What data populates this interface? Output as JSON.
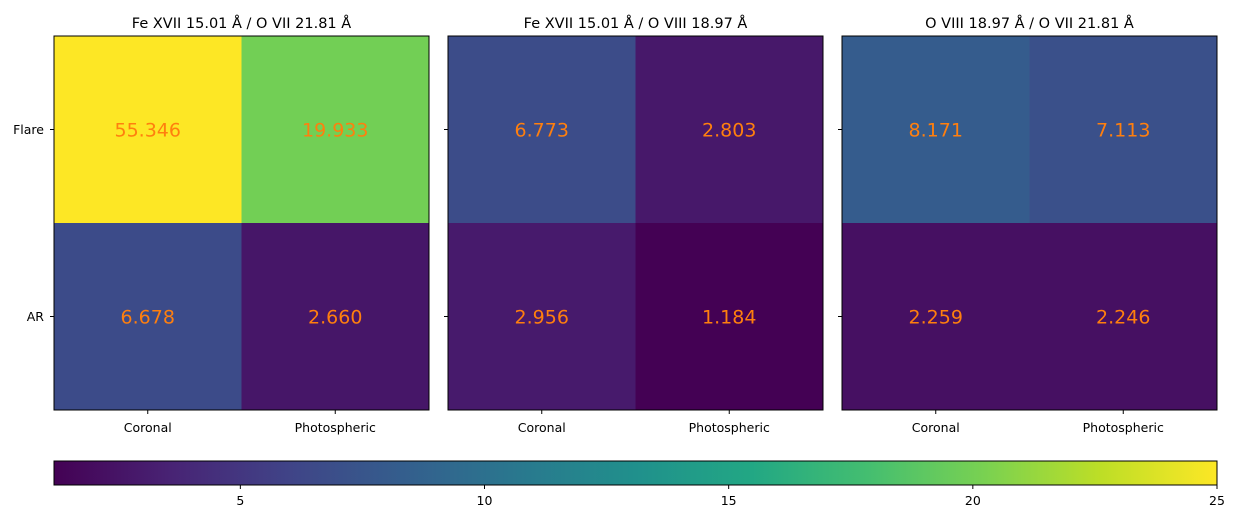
{
  "chart_data": {
    "type": "heatmap",
    "colormap": "viridis",
    "label_color": "#ff7f0e",
    "rows": [
      "Flare",
      "AR"
    ],
    "columns": [
      "Coronal",
      "Photospheric"
    ],
    "panels": [
      {
        "title": "Fe XVII 15.01 Å / O VII 21.81 Å",
        "values": [
          [
            55.346,
            19.933
          ],
          [
            6.678,
            2.66
          ]
        ],
        "labels": [
          [
            "55.346",
            "19.933"
          ],
          [
            "6.678",
            "2.660"
          ]
        ]
      },
      {
        "title": "Fe XVII 15.01 Å / O VIII 18.97 Å",
        "values": [
          [
            6.773,
            2.803
          ],
          [
            2.956,
            1.184
          ]
        ],
        "labels": [
          [
            "6.773",
            "2.803"
          ],
          [
            "2.956",
            "1.184"
          ]
        ]
      },
      {
        "title": "O VIII 18.97 Å / O VII 21.81 Å",
        "values": [
          [
            8.171,
            7.113
          ],
          [
            2.259,
            2.246
          ]
        ],
        "labels": [
          [
            "8.171",
            "7.113"
          ],
          [
            "2.259",
            "2.246"
          ]
        ]
      }
    ],
    "colorbar": {
      "orientation": "horizontal",
      "vmin": 1.184,
      "vmax": 25,
      "ticks": [
        5,
        10,
        15,
        20,
        25
      ],
      "tick_labels": [
        "5",
        "10",
        "15",
        "20",
        "25"
      ]
    }
  }
}
